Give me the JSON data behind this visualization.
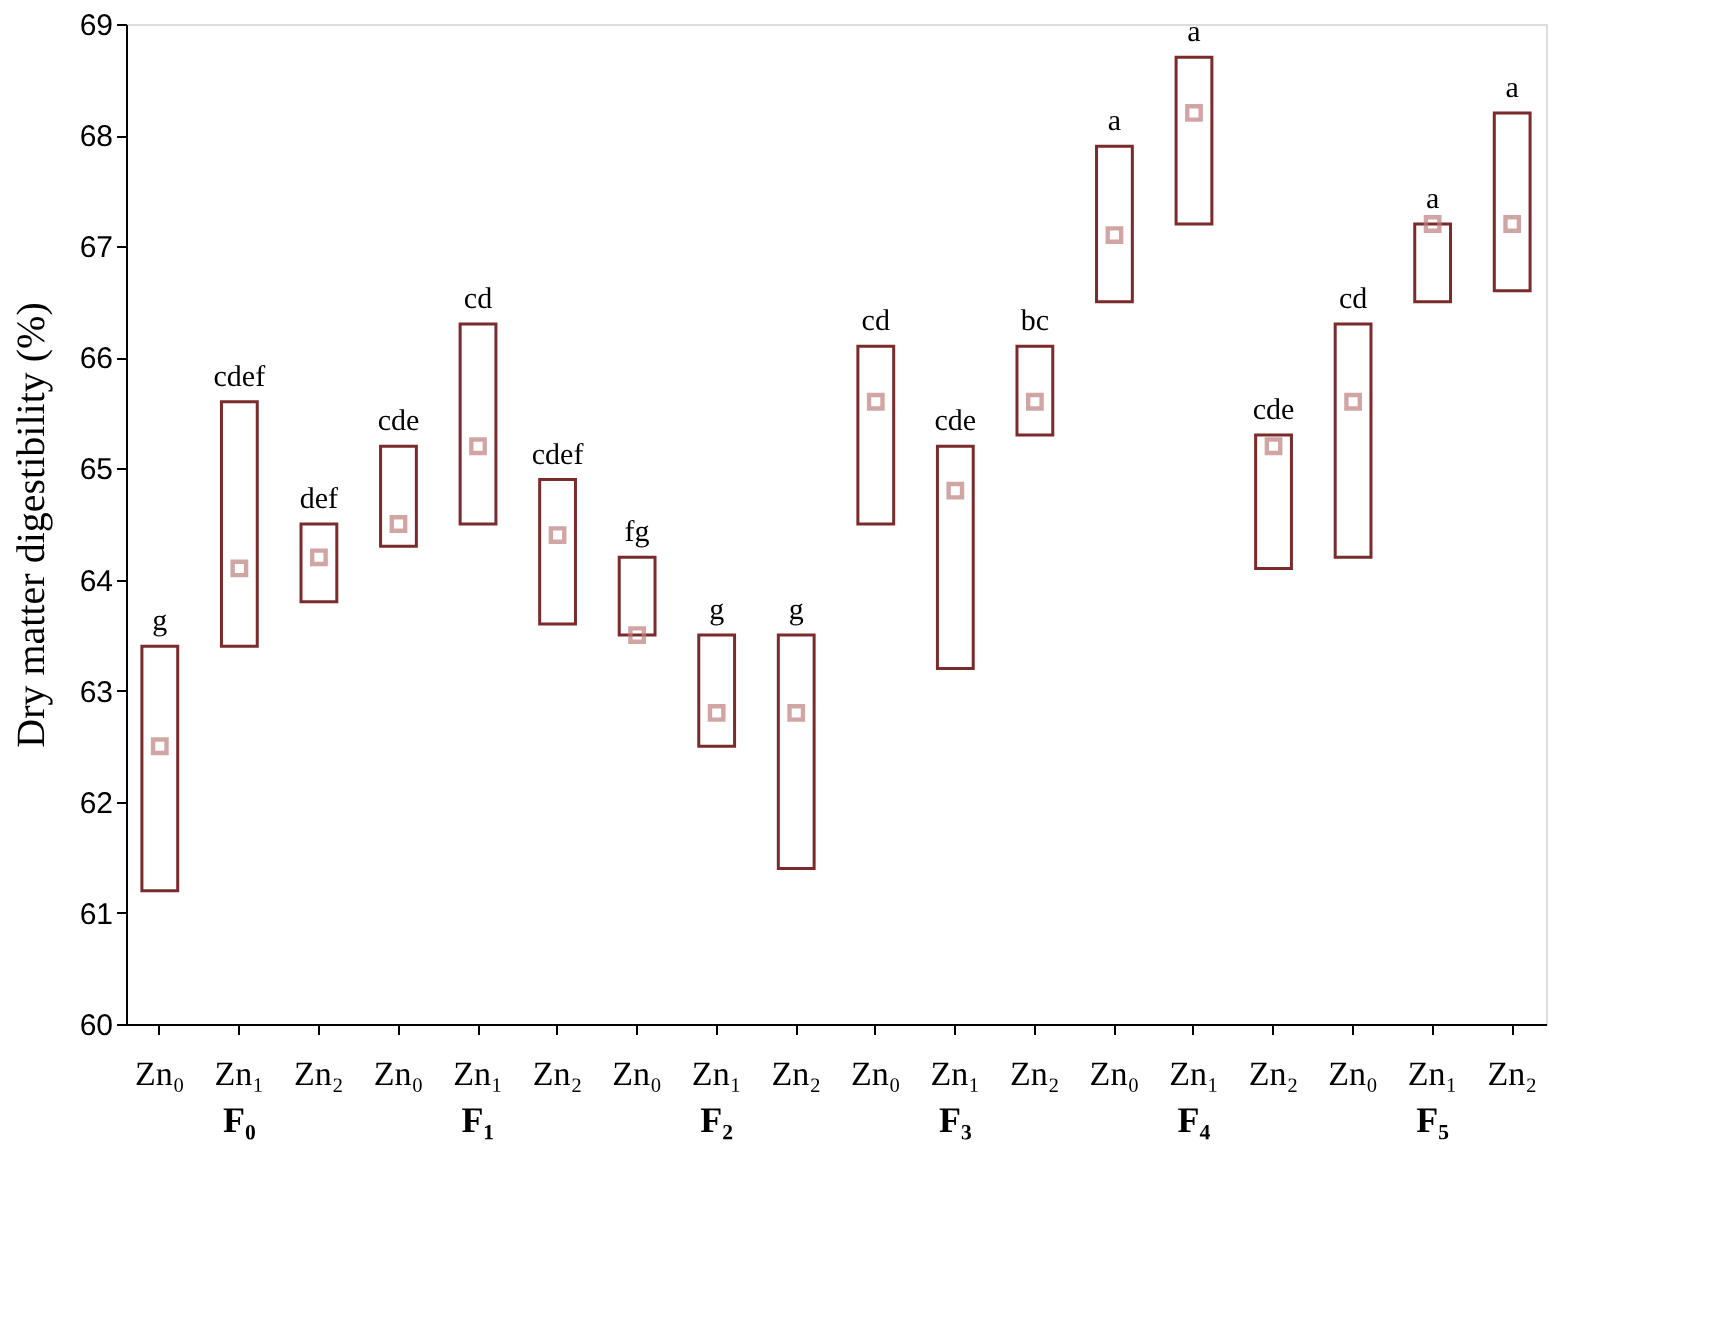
{
  "chart_data": {
    "type": "bar",
    "ylabel": "Dry matter digestibility (%)",
    "categories": [
      "Zn₀",
      "Zn₁",
      "Zn₂",
      "Zn₀",
      "Zn₁",
      "Zn₂",
      "Zn₀",
      "Zn₁",
      "Zn₂",
      "Zn₀",
      "Zn₁",
      "Zn₂",
      "Zn₀",
      "Zn₁",
      "Zn₂",
      "Zn₀",
      "Zn₁",
      "Zn₂"
    ],
    "series": [
      {
        "color": "#7b2b2b",
        "base": [
          61.2,
          63.4,
          63.8,
          64.3,
          64.5,
          63.6,
          63.5,
          62.5,
          61.4,
          64.5,
          63.2,
          65.3,
          66.5,
          67.2,
          64.1,
          64.2,
          66.5,
          66.6
        ],
        "values": [
          2.2,
          2.2,
          0.7,
          0.9,
          1.8,
          1.3,
          0.7,
          1.0,
          2.1,
          1.6,
          2.0,
          0.8,
          1.4,
          1.5,
          1.2,
          2.1,
          0.7,
          1.6
        ],
        "value_labels": [
          "g",
          "cdef",
          "def",
          "cde",
          "cd",
          "cdef",
          "fg",
          "g",
          "g",
          "cd",
          "cde",
          "bc",
          "a",
          "a",
          "cde",
          "cd",
          "a",
          "a"
        ]
      },
      {
        "type": "scatter",
        "color": "#c08080",
        "marker": "square",
        "values": [
          62.5,
          64.1,
          64.2,
          64.5,
          65.2,
          64.4,
          63.5,
          62.8,
          62.8,
          65.6,
          64.8,
          65.6,
          67.1,
          68.2,
          65.2,
          65.6,
          67.2,
          67.2
        ]
      }
    ],
    "annotations": [
      "F₀",
      "F₁",
      "F₂",
      "F₃",
      "F₄",
      "F₅"
    ],
    "ylim": [
      60,
      69
    ],
    "yticks": [
      60,
      61,
      62,
      63,
      64,
      65,
      66,
      67,
      68,
      69
    ],
    "grid": false
  }
}
